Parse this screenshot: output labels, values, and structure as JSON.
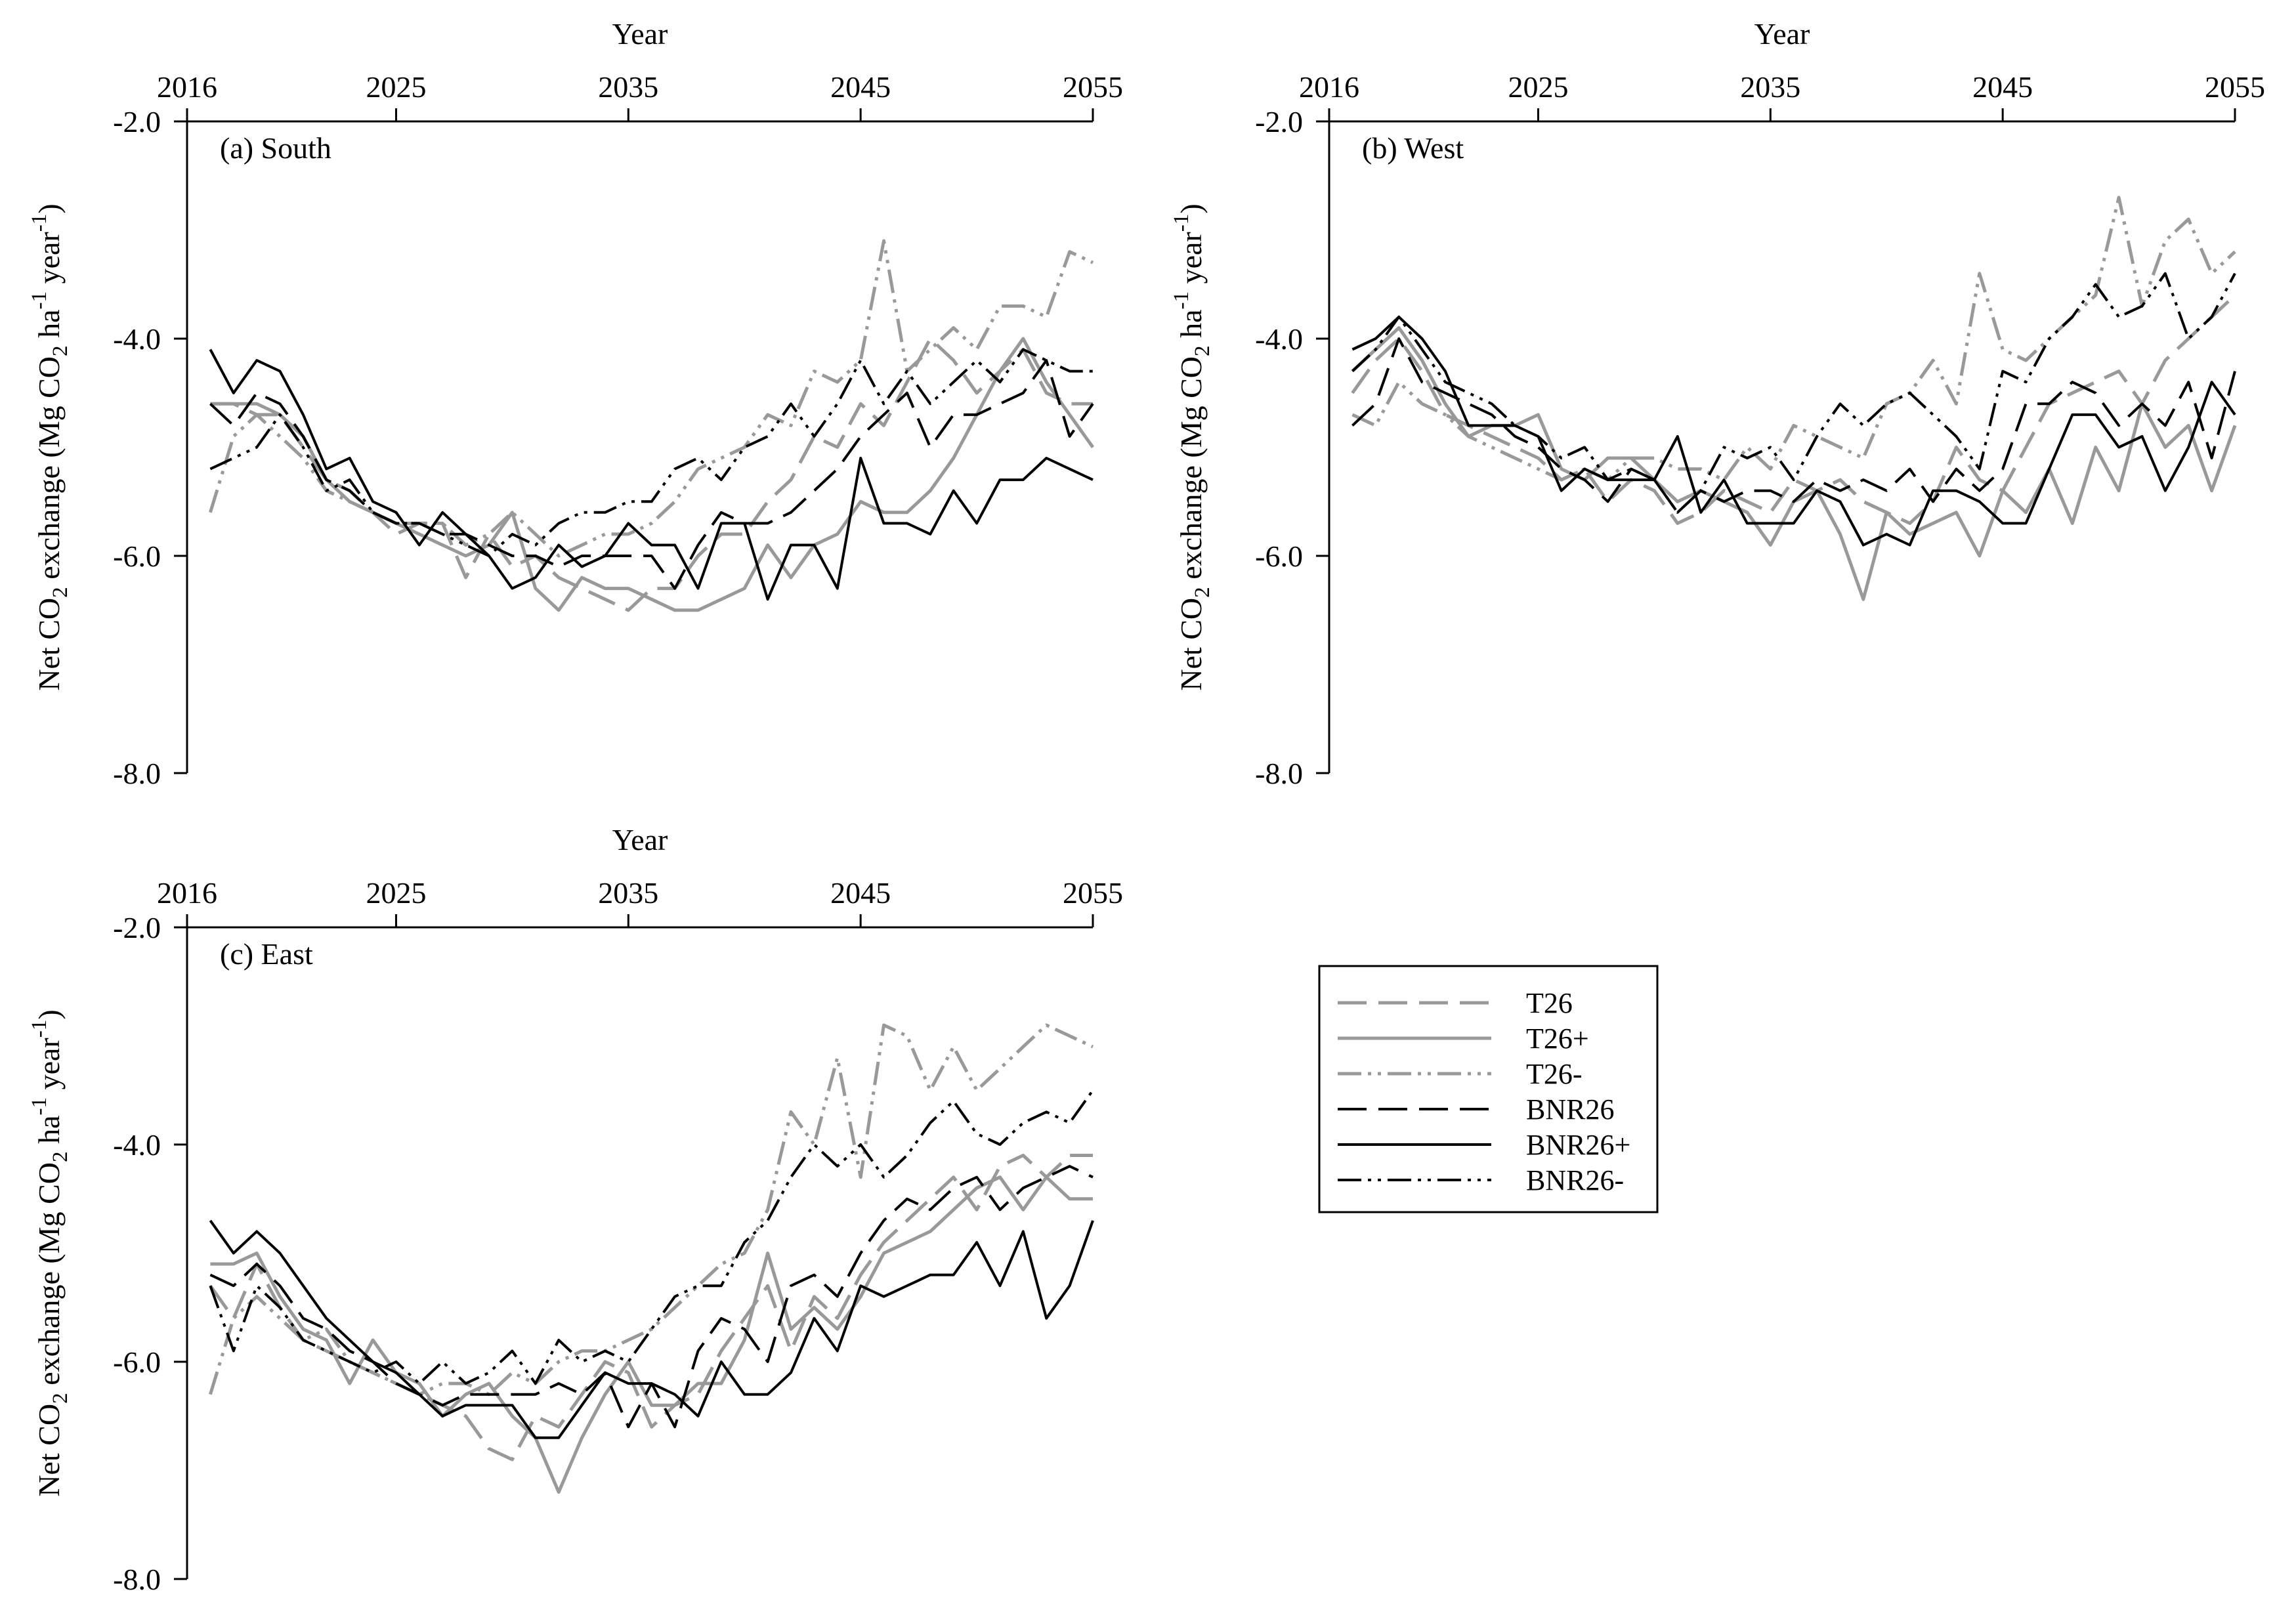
{
  "chart_data": [
    {
      "type": "line",
      "panel_label": "(a) South",
      "xlabel": "Year",
      "ylabel_parts": [
        "Net CO",
        "2",
        " exchange (Mg CO",
        "2",
        " ha",
        "-1",
        " year",
        "-1",
        ")"
      ],
      "xlim": [
        2016,
        2055
      ],
      "ylim": [
        -8.0,
        -2.0
      ],
      "xticks": [
        2016,
        2025,
        2035,
        2045,
        2055
      ],
      "xtick_labels": [
        "2016",
        "2025",
        "2035",
        "2045",
        "2055"
      ],
      "yticks": [
        -2.0,
        -4.0,
        -6.0,
        -8.0
      ],
      "ytick_labels": [
        "-2.0",
        "-4.0",
        "-6.0",
        "-8.0"
      ],
      "x": [
        2017,
        2018,
        2019,
        2020,
        2021,
        2022,
        2023,
        2024,
        2025,
        2026,
        2027,
        2028,
        2029,
        2030,
        2031,
        2032,
        2033,
        2034,
        2035,
        2036,
        2037,
        2038,
        2039,
        2040,
        2041,
        2042,
        2043,
        2044,
        2045,
        2046,
        2047,
        2048,
        2049,
        2050,
        2051,
        2052,
        2053,
        2054,
        2055
      ],
      "series": [
        {
          "name": "T26",
          "values": [
            -4.6,
            -4.6,
            -4.7,
            -4.7,
            -5.0,
            -5.3,
            -5.4,
            -5.6,
            -5.8,
            -5.7,
            -5.7,
            -6.2,
            -5.8,
            -6.1,
            -6.0,
            -6.2,
            -6.3,
            -6.4,
            -6.5,
            -6.3,
            -6.3,
            -6.0,
            -5.8,
            -5.8,
            -5.5,
            -5.3,
            -4.9,
            -5.0,
            -4.6,
            -4.8,
            -4.4,
            -4.0,
            -4.2,
            -4.5,
            -4.3,
            -4.1,
            -4.5,
            -4.6,
            -4.6
          ]
        },
        {
          "name": "T26+",
          "values": [
            -4.6,
            -4.6,
            -4.6,
            -4.7,
            -4.9,
            -5.3,
            -5.5,
            -5.6,
            -5.7,
            -5.8,
            -5.9,
            -6.0,
            -5.9,
            -5.6,
            -6.3,
            -6.5,
            -6.2,
            -6.3,
            -6.3,
            -6.4,
            -6.5,
            -6.5,
            -6.4,
            -6.3,
            -5.9,
            -6.2,
            -5.9,
            -5.8,
            -5.5,
            -5.6,
            -5.6,
            -5.4,
            -5.1,
            -4.7,
            -4.3,
            -4.0,
            -4.4,
            -4.7,
            -5.0
          ]
        },
        {
          "name": "T26-",
          "values": [
            -5.6,
            -4.9,
            -4.7,
            -4.9,
            -5.1,
            -5.4,
            -5.5,
            -5.6,
            -5.7,
            -5.7,
            -5.7,
            -5.9,
            -5.8,
            -5.6,
            -5.8,
            -6.0,
            -5.9,
            -5.8,
            -5.8,
            -5.7,
            -5.5,
            -5.2,
            -5.1,
            -5.0,
            -4.7,
            -4.8,
            -4.3,
            -4.4,
            -4.2,
            -3.1,
            -4.3,
            -4.1,
            -3.9,
            -4.1,
            -3.7,
            -3.7,
            -3.8,
            -3.2,
            -3.3
          ]
        },
        {
          "name": "BNR26",
          "values": [
            -4.6,
            -4.8,
            -4.5,
            -4.6,
            -4.9,
            -5.3,
            -5.4,
            -5.6,
            -5.7,
            -5.7,
            -5.8,
            -5.8,
            -5.9,
            -6.0,
            -6.0,
            -6.1,
            -6.0,
            -6.0,
            -6.0,
            -6.0,
            -6.3,
            -5.9,
            -5.6,
            -5.7,
            -5.7,
            -5.6,
            -5.4,
            -5.2,
            -4.9,
            -4.7,
            -4.5,
            -5.0,
            -4.7,
            -4.7,
            -4.6,
            -4.5,
            -4.2,
            -4.9,
            -4.6
          ]
        },
        {
          "name": "BNR26+",
          "values": [
            -4.1,
            -4.5,
            -4.2,
            -4.3,
            -4.7,
            -5.2,
            -5.1,
            -5.5,
            -5.6,
            -5.9,
            -5.6,
            -5.8,
            -6.0,
            -6.3,
            -6.2,
            -5.9,
            -6.1,
            -6.0,
            -5.7,
            -5.9,
            -5.9,
            -6.3,
            -5.7,
            -5.7,
            -6.4,
            -5.9,
            -5.9,
            -6.3,
            -5.1,
            -5.7,
            -5.7,
            -5.8,
            -5.4,
            -5.7,
            -5.3,
            -5.3,
            -5.1,
            -5.2,
            -5.3
          ]
        },
        {
          "name": "BNR26-",
          "values": [
            -5.2,
            -5.1,
            -5.0,
            -4.7,
            -5.0,
            -5.4,
            -5.3,
            -5.6,
            -5.7,
            -5.7,
            -5.8,
            -5.9,
            -6.0,
            -5.8,
            -5.9,
            -5.7,
            -5.6,
            -5.6,
            -5.5,
            -5.5,
            -5.2,
            -5.1,
            -5.3,
            -5.0,
            -4.9,
            -4.6,
            -4.9,
            -4.6,
            -4.2,
            -4.6,
            -4.3,
            -4.6,
            -4.4,
            -4.2,
            -4.4,
            -4.1,
            -4.2,
            -4.3,
            -4.3
          ]
        }
      ]
    },
    {
      "type": "line",
      "panel_label": "(b) West",
      "xlabel": "Year",
      "ylabel_parts": [
        "Net CO",
        "2",
        " exchange (Mg CO",
        "2",
        " ha",
        "-1",
        " year",
        "-1",
        ")"
      ],
      "xlim": [
        2016,
        2055
      ],
      "ylim": [
        -8.0,
        -2.0
      ],
      "xticks": [
        2016,
        2025,
        2035,
        2045,
        2055
      ],
      "xtick_labels": [
        "2016",
        "2025",
        "2035",
        "2045",
        "2055"
      ],
      "yticks": [
        -2.0,
        -4.0,
        -6.0,
        -8.0
      ],
      "ytick_labels": [
        "-2.0",
        "-4.0",
        "-6.0",
        "-8.0"
      ],
      "x": [
        2017,
        2018,
        2019,
        2020,
        2021,
        2022,
        2023,
        2024,
        2025,
        2026,
        2027,
        2028,
        2029,
        2030,
        2031,
        2032,
        2033,
        2034,
        2035,
        2036,
        2037,
        2038,
        2039,
        2040,
        2041,
        2042,
        2043,
        2044,
        2045,
        2046,
        2047,
        2048,
        2049,
        2050,
        2051,
        2052,
        2053,
        2054,
        2055
      ],
      "series": [
        {
          "name": "T26",
          "values": [
            -4.5,
            -4.2,
            -4.0,
            -4.3,
            -4.7,
            -4.8,
            -4.9,
            -5.0,
            -5.1,
            -5.3,
            -5.2,
            -5.5,
            -5.3,
            -5.4,
            -5.7,
            -5.6,
            -5.4,
            -5.5,
            -5.6,
            -5.3,
            -5.4,
            -5.3,
            -5.5,
            -5.6,
            -5.7,
            -5.5,
            -5.0,
            -5.3,
            -5.4,
            -5.0,
            -4.6,
            -4.5,
            -4.4,
            -4.3,
            -4.6,
            -4.2,
            -4.0,
            -3.8,
            -3.6
          ]
        },
        {
          "name": "T26+",
          "values": [
            -4.3,
            -4.1,
            -3.9,
            -4.2,
            -4.6,
            -4.9,
            -4.8,
            -4.8,
            -4.7,
            -5.2,
            -5.3,
            -5.1,
            -5.1,
            -5.3,
            -5.5,
            -5.4,
            -5.5,
            -5.6,
            -5.9,
            -5.5,
            -5.4,
            -5.8,
            -6.4,
            -5.6,
            -5.8,
            -5.7,
            -5.6,
            -6.0,
            -5.4,
            -5.6,
            -5.2,
            -5.7,
            -5.0,
            -5.4,
            -4.6,
            -5.0,
            -4.8,
            -5.4,
            -4.8
          ]
        },
        {
          "name": "T26-",
          "values": [
            -4.7,
            -4.8,
            -4.4,
            -4.6,
            -4.7,
            -4.9,
            -5.0,
            -5.1,
            -5.2,
            -5.3,
            -5.2,
            -5.3,
            -5.1,
            -5.1,
            -5.2,
            -5.2,
            -5.3,
            -5.0,
            -5.2,
            -4.8,
            -4.9,
            -5.0,
            -5.1,
            -4.6,
            -4.5,
            -4.2,
            -4.6,
            -3.4,
            -4.1,
            -4.2,
            -4.0,
            -3.8,
            -3.6,
            -2.7,
            -3.7,
            -3.1,
            -2.9,
            -3.4,
            -3.2
          ]
        },
        {
          "name": "BNR26",
          "values": [
            -4.8,
            -4.6,
            -4.0,
            -4.4,
            -4.5,
            -4.6,
            -4.7,
            -4.9,
            -5.0,
            -5.2,
            -5.3,
            -5.5,
            -5.2,
            -5.3,
            -5.6,
            -5.4,
            -5.5,
            -5.4,
            -5.4,
            -5.5,
            -5.3,
            -5.4,
            -5.3,
            -5.4,
            -5.2,
            -5.5,
            -5.2,
            -5.4,
            -5.2,
            -4.6,
            -4.6,
            -4.4,
            -4.5,
            -4.8,
            -4.6,
            -4.8,
            -4.4,
            -5.1,
            -4.3
          ]
        },
        {
          "name": "BNR26+",
          "values": [
            -4.1,
            -4.0,
            -3.8,
            -4.0,
            -4.3,
            -4.8,
            -4.8,
            -4.8,
            -4.9,
            -5.4,
            -5.2,
            -5.3,
            -5.3,
            -5.3,
            -4.9,
            -5.6,
            -5.3,
            -5.7,
            -5.7,
            -5.7,
            -5.4,
            -5.5,
            -5.9,
            -5.8,
            -5.9,
            -5.4,
            -5.4,
            -5.5,
            -5.7,
            -5.7,
            -5.2,
            -4.7,
            -4.7,
            -5.0,
            -4.9,
            -5.4,
            -5.0,
            -4.4,
            -4.7
          ]
        },
        {
          "name": "BNR26-",
          "values": [
            -4.3,
            -4.1,
            -3.8,
            -4.1,
            -4.4,
            -4.5,
            -4.6,
            -4.8,
            -4.9,
            -5.1,
            -5.0,
            -5.3,
            -5.2,
            -5.3,
            -5.6,
            -5.4,
            -5.0,
            -5.1,
            -5.0,
            -5.3,
            -4.9,
            -4.6,
            -4.8,
            -4.6,
            -4.5,
            -4.7,
            -4.9,
            -5.2,
            -4.3,
            -4.4,
            -4.0,
            -3.8,
            -3.5,
            -3.8,
            -3.7,
            -3.4,
            -4.0,
            -3.8,
            -3.4
          ]
        }
      ]
    },
    {
      "type": "line",
      "panel_label": "(c) East",
      "xlabel": "Year",
      "ylabel_parts": [
        "Net CO",
        "2",
        " exchange (Mg CO",
        "2",
        " ha",
        "-1",
        " year",
        "-1",
        ")"
      ],
      "xlim": [
        2016,
        2055
      ],
      "ylim": [
        -8.0,
        -2.0
      ],
      "xticks": [
        2016,
        2025,
        2035,
        2045,
        2055
      ],
      "xtick_labels": [
        "2016",
        "2025",
        "2035",
        "2045",
        "2055"
      ],
      "yticks": [
        -2.0,
        -4.0,
        -6.0,
        -8.0
      ],
      "ytick_labels": [
        "-2.0",
        "-4.0",
        "-6.0",
        "-8.0"
      ],
      "x": [
        2017,
        2018,
        2019,
        2020,
        2021,
        2022,
        2023,
        2024,
        2025,
        2026,
        2027,
        2028,
        2029,
        2030,
        2031,
        2032,
        2033,
        2034,
        2035,
        2036,
        2037,
        2038,
        2039,
        2040,
        2041,
        2042,
        2043,
        2044,
        2045,
        2046,
        2047,
        2048,
        2049,
        2050,
        2051,
        2052,
        2053,
        2054,
        2055
      ],
      "series": [
        {
          "name": "T26",
          "values": [
            -5.3,
            -5.6,
            -5.1,
            -5.5,
            -5.8,
            -5.9,
            -6.0,
            -6.1,
            -6.2,
            -6.3,
            -6.4,
            -6.5,
            -6.8,
            -6.9,
            -6.5,
            -6.6,
            -6.3,
            -6.0,
            -6.1,
            -6.6,
            -6.4,
            -6.3,
            -5.9,
            -5.6,
            -5.3,
            -5.9,
            -5.4,
            -5.6,
            -5.2,
            -4.9,
            -4.7,
            -4.5,
            -4.3,
            -4.6,
            -4.2,
            -4.1,
            -4.3,
            -4.1,
            -4.1
          ]
        },
        {
          "name": "T26+",
          "values": [
            -5.1,
            -5.1,
            -5.0,
            -5.4,
            -5.7,
            -5.8,
            -6.2,
            -5.8,
            -6.1,
            -6.2,
            -6.5,
            -6.3,
            -6.2,
            -6.5,
            -6.7,
            -7.2,
            -6.7,
            -6.3,
            -6.0,
            -6.4,
            -6.4,
            -6.2,
            -6.2,
            -5.8,
            -5.0,
            -5.7,
            -5.5,
            -5.7,
            -5.4,
            -5.0,
            -4.9,
            -4.8,
            -4.6,
            -4.4,
            -4.3,
            -4.6,
            -4.3,
            -4.5,
            -4.5
          ]
        },
        {
          "name": "T26-",
          "values": [
            -6.3,
            -5.6,
            -5.4,
            -5.6,
            -5.8,
            -5.7,
            -6.0,
            -6.1,
            -6.2,
            -6.3,
            -6.2,
            -6.2,
            -6.3,
            -6.1,
            -6.2,
            -6.0,
            -5.9,
            -5.9,
            -5.8,
            -5.7,
            -5.5,
            -5.3,
            -5.1,
            -5.0,
            -4.6,
            -3.7,
            -4.0,
            -3.2,
            -4.3,
            -2.9,
            -3.0,
            -3.5,
            -3.1,
            -3.5,
            -3.3,
            -3.1,
            -2.9,
            -3.0,
            -3.1
          ]
        },
        {
          "name": "BNR26",
          "values": [
            -5.2,
            -5.3,
            -5.1,
            -5.3,
            -5.6,
            -5.7,
            -5.9,
            -6.0,
            -6.2,
            -6.3,
            -6.4,
            -6.3,
            -6.3,
            -6.3,
            -6.3,
            -6.2,
            -6.3,
            -6.1,
            -6.6,
            -6.2,
            -6.6,
            -5.9,
            -5.6,
            -5.7,
            -6.0,
            -5.3,
            -5.2,
            -5.4,
            -5.0,
            -4.7,
            -4.5,
            -4.6,
            -4.4,
            -4.3,
            -4.6,
            -4.4,
            -4.3,
            -4.2,
            -4.3
          ]
        },
        {
          "name": "BNR26+",
          "values": [
            -4.7,
            -5.0,
            -4.8,
            -5.0,
            -5.3,
            -5.6,
            -5.8,
            -6.0,
            -6.1,
            -6.3,
            -6.5,
            -6.4,
            -6.4,
            -6.4,
            -6.7,
            -6.7,
            -6.4,
            -6.1,
            -6.2,
            -6.2,
            -6.3,
            -6.5,
            -6.0,
            -6.3,
            -6.3,
            -6.1,
            -5.6,
            -5.9,
            -5.3,
            -5.4,
            -5.3,
            -5.2,
            -5.2,
            -4.9,
            -5.3,
            -4.8,
            -5.6,
            -5.3,
            -4.7
          ]
        },
        {
          "name": "BNR26-",
          "values": [
            -5.3,
            -5.9,
            -5.3,
            -5.5,
            -5.8,
            -5.9,
            -6.0,
            -6.1,
            -6.0,
            -6.2,
            -6.0,
            -6.2,
            -6.1,
            -5.9,
            -6.2,
            -5.8,
            -6.0,
            -5.9,
            -6.0,
            -5.7,
            -5.4,
            -5.3,
            -5.3,
            -4.9,
            -4.7,
            -4.3,
            -4.0,
            -4.2,
            -4.0,
            -4.3,
            -4.1,
            -3.8,
            -3.6,
            -3.9,
            -4.0,
            -3.8,
            -3.7,
            -3.8,
            -3.5
          ]
        }
      ]
    }
  ],
  "legend": {
    "entries": [
      {
        "name": "T26",
        "color": "#999999",
        "dash": "dash"
      },
      {
        "name": "T26+",
        "color": "#999999",
        "dash": "solid"
      },
      {
        "name": "T26-",
        "color": "#999999",
        "dash": "dashdotdot"
      },
      {
        "name": "BNR26",
        "color": "#000000",
        "dash": "dash"
      },
      {
        "name": "BNR26+",
        "color": "#000000",
        "dash": "solid"
      },
      {
        "name": "BNR26-",
        "color": "#000000",
        "dash": "dashdotdot"
      }
    ]
  }
}
